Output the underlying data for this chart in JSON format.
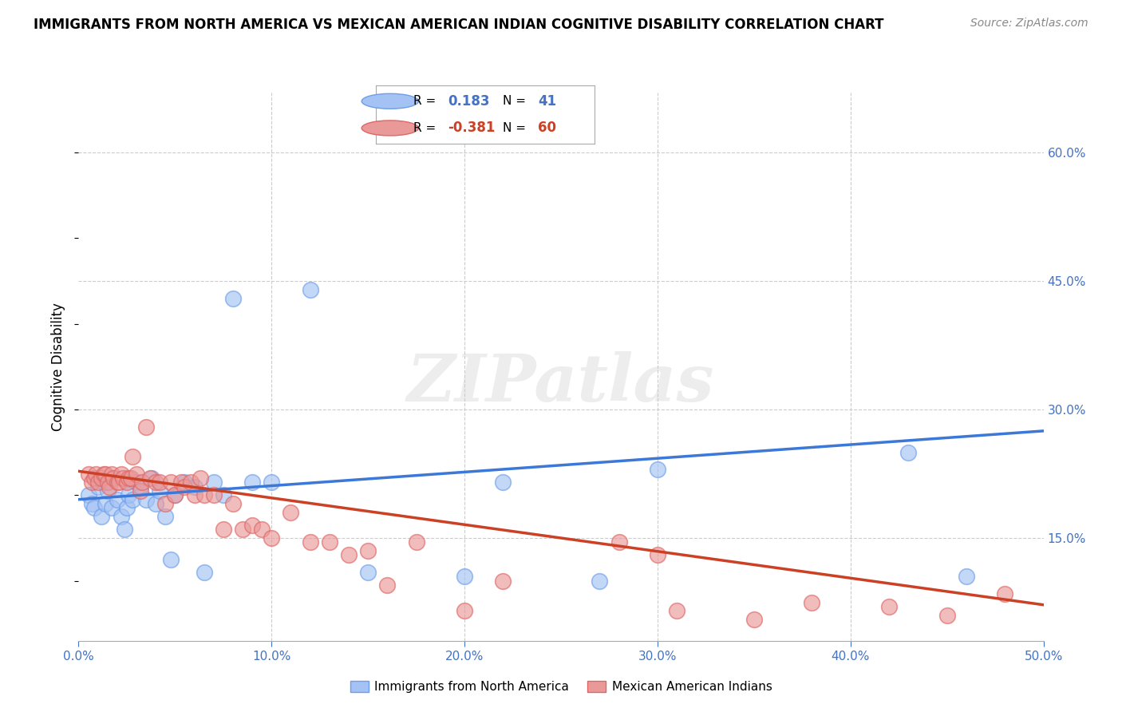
{
  "title": "IMMIGRANTS FROM NORTH AMERICA VS MEXICAN AMERICAN INDIAN COGNITIVE DISABILITY CORRELATION CHART",
  "source": "Source: ZipAtlas.com",
  "ylabel": "Cognitive Disability",
  "ytick_vals": [
    0.6,
    0.45,
    0.3,
    0.15
  ],
  "ytick_labels": [
    "60.0%",
    "45.0%",
    "30.0%",
    "15.0%"
  ],
  "xtick_vals": [
    0.0,
    0.1,
    0.2,
    0.3,
    0.4,
    0.5
  ],
  "xtick_labels": [
    "0.0%",
    "10.0%",
    "20.0%",
    "30.0%",
    "40.0%",
    "50.0%"
  ],
  "xlim": [
    0.0,
    0.5
  ],
  "ylim": [
    0.03,
    0.67
  ],
  "legend_blue_r": "0.183",
  "legend_blue_n": "41",
  "legend_pink_r": "-0.381",
  "legend_pink_n": "60",
  "legend_blue_label": "Immigrants from North America",
  "legend_pink_label": "Mexican American Indians",
  "blue_scatter_color": "#a4c2f4",
  "blue_scatter_edge": "#6d9eeb",
  "pink_scatter_color": "#ea9999",
  "pink_scatter_edge": "#e06666",
  "blue_line_color": "#3c78d8",
  "pink_line_color": "#cc4125",
  "watermark": "ZIPatlas",
  "blue_x": [
    0.005,
    0.007,
    0.008,
    0.01,
    0.012,
    0.013,
    0.014,
    0.015,
    0.017,
    0.018,
    0.02,
    0.022,
    0.024,
    0.025,
    0.026,
    0.028,
    0.03,
    0.032,
    0.035,
    0.038,
    0.04,
    0.042,
    0.045,
    0.048,
    0.05,
    0.055,
    0.06,
    0.065,
    0.07,
    0.075,
    0.08,
    0.09,
    0.1,
    0.12,
    0.15,
    0.2,
    0.22,
    0.27,
    0.3,
    0.43,
    0.46
  ],
  "blue_y": [
    0.2,
    0.19,
    0.185,
    0.21,
    0.175,
    0.215,
    0.19,
    0.205,
    0.185,
    0.22,
    0.195,
    0.175,
    0.16,
    0.185,
    0.2,
    0.195,
    0.215,
    0.21,
    0.195,
    0.22,
    0.19,
    0.205,
    0.175,
    0.125,
    0.2,
    0.215,
    0.21,
    0.11,
    0.215,
    0.2,
    0.43,
    0.215,
    0.215,
    0.44,
    0.11,
    0.105,
    0.215,
    0.1,
    0.23,
    0.25,
    0.105
  ],
  "pink_x": [
    0.005,
    0.007,
    0.008,
    0.009,
    0.01,
    0.012,
    0.013,
    0.014,
    0.015,
    0.016,
    0.017,
    0.018,
    0.02,
    0.021,
    0.022,
    0.023,
    0.025,
    0.026,
    0.027,
    0.028,
    0.03,
    0.032,
    0.033,
    0.035,
    0.037,
    0.04,
    0.042,
    0.045,
    0.048,
    0.05,
    0.053,
    0.055,
    0.058,
    0.06,
    0.063,
    0.065,
    0.07,
    0.075,
    0.08,
    0.085,
    0.09,
    0.095,
    0.1,
    0.11,
    0.12,
    0.13,
    0.14,
    0.15,
    0.16,
    0.175,
    0.2,
    0.22,
    0.28,
    0.3,
    0.31,
    0.35,
    0.38,
    0.42,
    0.45,
    0.48
  ],
  "pink_y": [
    0.225,
    0.215,
    0.22,
    0.225,
    0.215,
    0.22,
    0.225,
    0.225,
    0.215,
    0.21,
    0.225,
    0.22,
    0.215,
    0.215,
    0.225,
    0.22,
    0.215,
    0.22,
    0.22,
    0.245,
    0.225,
    0.205,
    0.215,
    0.28,
    0.22,
    0.215,
    0.215,
    0.19,
    0.215,
    0.2,
    0.215,
    0.21,
    0.215,
    0.2,
    0.22,
    0.2,
    0.2,
    0.16,
    0.19,
    0.16,
    0.165,
    0.16,
    0.15,
    0.18,
    0.145,
    0.145,
    0.13,
    0.135,
    0.095,
    0.145,
    0.065,
    0.1,
    0.145,
    0.13,
    0.065,
    0.055,
    0.075,
    0.07,
    0.06,
    0.085
  ]
}
